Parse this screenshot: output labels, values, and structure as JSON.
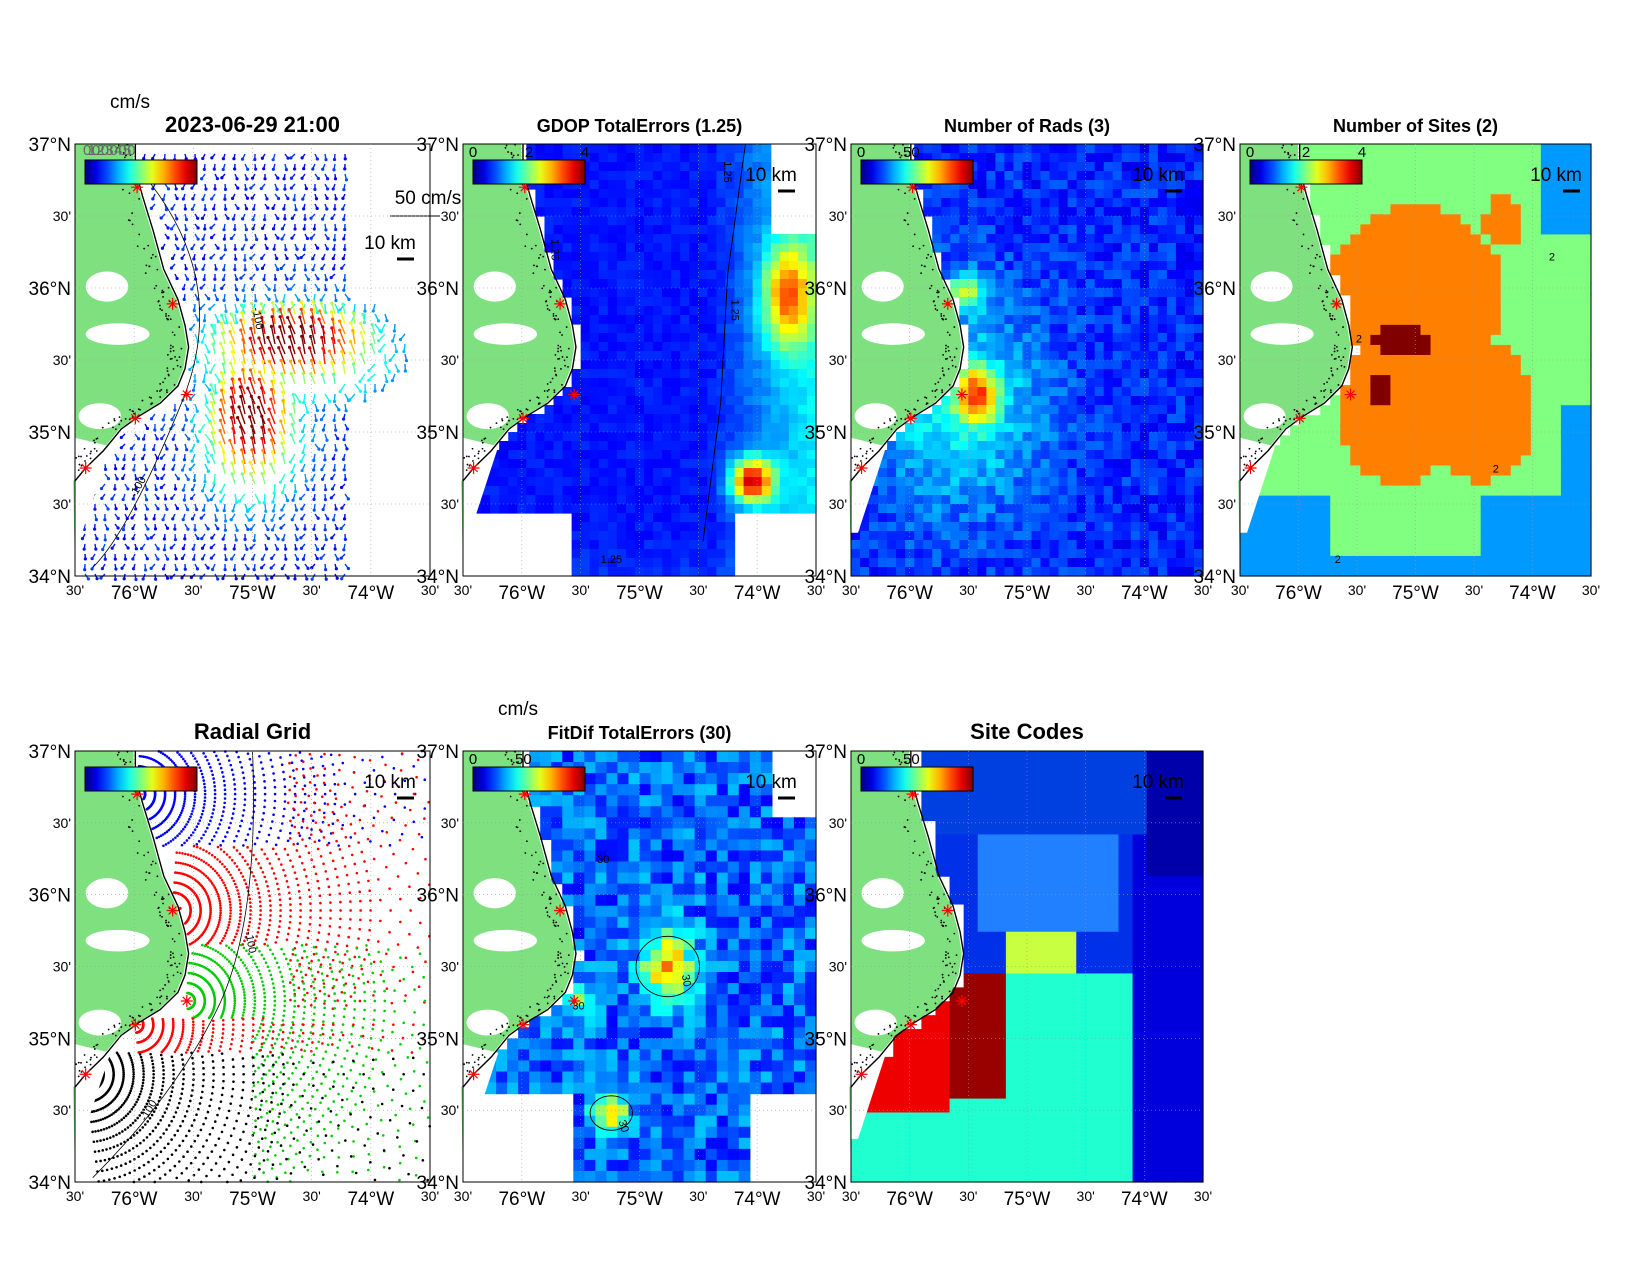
{
  "panels": [
    {
      "id": "surface-currents",
      "title": "2023-06-29 21:00",
      "bold_title": true,
      "type": "vectors",
      "colorbar_unit": "cm/s",
      "colorbar_ticks": [],
      "colorbar_overlay_text": "0 10 20 30 40 50",
      "scale_arrow_label": "50 cm/s",
      "scale_bar_label": "10 km",
      "contour_labels": [
        "-100",
        "-100"
      ]
    },
    {
      "id": "gdop-total-errors",
      "title": "GDOP TotalErrors (1.25)",
      "type": "field-gdop",
      "colorbar_unit": "",
      "colorbar_ticks": [
        "0",
        "2",
        "4"
      ],
      "scale_bar_label": "10 km",
      "contour_labels": [
        "1.25",
        "1.25",
        "1.25",
        "1.25"
      ]
    },
    {
      "id": "number-of-rads",
      "title": "Number of Rads (3)",
      "type": "field-rads",
      "colorbar_unit": "",
      "colorbar_ticks": [
        "0",
        "50"
      ],
      "scale_bar_label": "10 km",
      "contour_labels": []
    },
    {
      "id": "number-of-sites",
      "title": "Number of Sites (2)",
      "type": "field-sites",
      "colorbar_unit": "",
      "colorbar_ticks": [
        "0",
        "2",
        "4"
      ],
      "scale_bar_label": "10 km",
      "contour_labels": [
        "2",
        "2",
        "2",
        "2"
      ]
    },
    {
      "id": "radial-grid",
      "title": "Radial Grid",
      "bold_title": true,
      "type": "radial-grid",
      "colorbar_unit": "",
      "colorbar_ticks": [],
      "scale_bar_label": "10 km",
      "contour_labels": [
        "-100",
        "-100"
      ]
    },
    {
      "id": "fitdif-total-errors",
      "title": "FitDif TotalErrors (30)",
      "type": "field-fitdif",
      "colorbar_unit": "cm/s",
      "colorbar_ticks": [
        "0",
        "50"
      ],
      "scale_bar_label": "10 km",
      "contour_labels": [
        "30",
        "30",
        "30",
        "30"
      ]
    },
    {
      "id": "site-codes",
      "title": "Site Codes",
      "bold_title": true,
      "type": "field-codes",
      "colorbar_unit": "",
      "colorbar_ticks": [
        "0",
        "50"
      ],
      "scale_bar_label": "10 km",
      "contour_labels": []
    }
  ],
  "axes": {
    "lat_ticks": [
      "37°N",
      "30'",
      "36°N",
      "30'",
      "35°N",
      "30'",
      "34°N"
    ],
    "lon_ticks": [
      "30'",
      "76°W",
      "30'",
      "75°W",
      "30'",
      "74°W",
      "30'"
    ],
    "lat_range": [
      34,
      37
    ],
    "lon_range": [
      -76.5,
      -73.5
    ]
  },
  "colors": {
    "land": "#7fe07f",
    "coast": "#000000",
    "site_marker": "#ff0000"
  }
}
